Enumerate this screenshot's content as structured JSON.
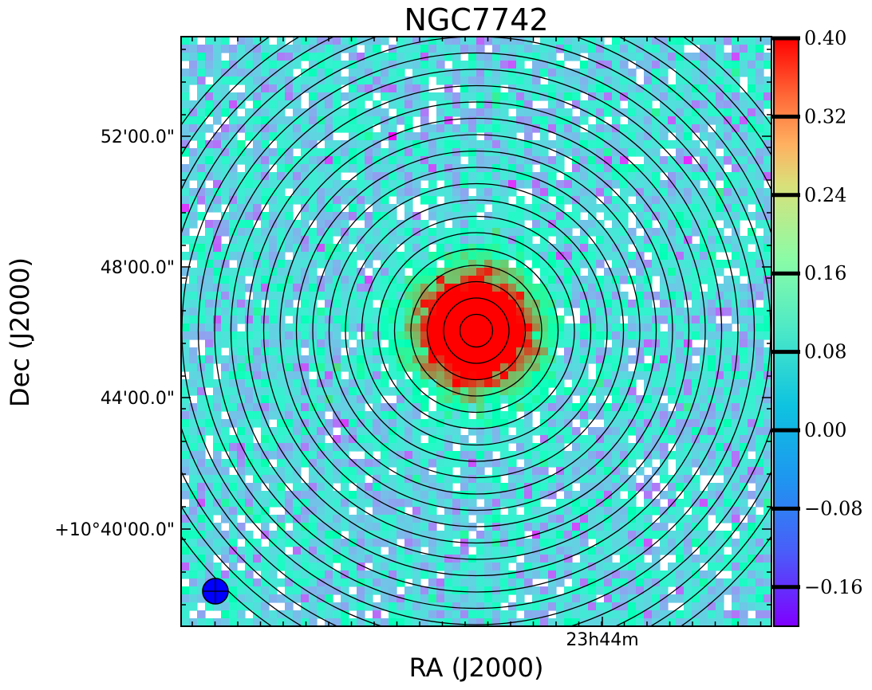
{
  "chart_data": {
    "type": "heatmap",
    "title": "NGC7742",
    "xlabel": "RA (J2000)",
    "ylabel": "Dec (J2000)",
    "x_tick_labels": [
      "23h44m"
    ],
    "y_tick_labels": [
      "52'00.0\"",
      "48'00.0\"",
      "44'00.0\"",
      "+10°40'00.0\""
    ],
    "colorbar": {
      "min": -0.2,
      "max": 0.4,
      "tick_labels": [
        "0.40",
        "0.32",
        "0.24",
        "0.16",
        "0.08",
        "0.00",
        "−0.08",
        "−0.16"
      ],
      "tick_values": [
        0.4,
        0.32,
        0.24,
        0.16,
        0.08,
        0.0,
        -0.08,
        -0.16
      ],
      "colormap": "rainbow"
    },
    "center_peak_value": 0.4,
    "background_level": 0.0,
    "contours": {
      "shape": "concentric circles",
      "count": 22,
      "color": "#000000"
    },
    "beam": {
      "fill": "#0000ff",
      "edge": "#000000"
    },
    "grid": false
  }
}
